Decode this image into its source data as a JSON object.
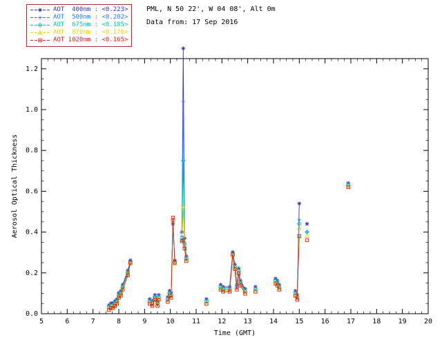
{
  "header": {
    "site_line": "PML, N 50 22', W 04 08', Alt 0m",
    "date_line": "Data from: 17 Sep 2016"
  },
  "legend": {
    "items": [
      {
        "label": "AOT  400nm : <0.223>"
      },
      {
        "label": "AOT  500nm : <0.202>"
      },
      {
        "label": "AOT  675nm : <0.185>"
      },
      {
        "label": "AOT  870nm : <0.176>"
      },
      {
        "label": "AOT 1020nm : <0.165>"
      }
    ]
  },
  "chart_data": {
    "type": "scatter",
    "title": "",
    "xlabel": "Time (GMT)",
    "ylabel": "Aerosol Optical Thickness",
    "xlim": [
      5,
      20
    ],
    "ylim": [
      0,
      1.25
    ],
    "xticks": [
      5,
      6,
      7,
      8,
      9,
      10,
      11,
      12,
      13,
      14,
      15,
      16,
      17,
      18,
      19,
      20
    ],
    "yticks": [
      0.0,
      0.2,
      0.4,
      0.6,
      0.8,
      1.0,
      1.2
    ],
    "grid": false,
    "legend_position": "top-left",
    "x": [
      7.62,
      7.7,
      7.78,
      7.85,
      7.93,
      8.0,
      8.08,
      8.15,
      8.35,
      8.45,
      9.2,
      9.3,
      9.4,
      9.5,
      9.55,
      9.9,
      9.97,
      10.03,
      10.1,
      10.17,
      10.45,
      10.5,
      10.55,
      10.62,
      11.4,
      11.95,
      12.05,
      12.3,
      12.42,
      12.5,
      12.58,
      12.65,
      12.72,
      12.9,
      13.3,
      14.08,
      14.15,
      14.22,
      14.85,
      14.92,
      15.0,
      15.3,
      16.9
    ],
    "series": [
      {
        "name": "AOT 400nm",
        "mean": 0.223,
        "color": "#3333bb",
        "marker": "star",
        "values": [
          0.042,
          0.052,
          0.052,
          0.062,
          0.072,
          0.102,
          0.112,
          0.142,
          0.212,
          0.262,
          0.072,
          0.062,
          0.092,
          0.062,
          0.092,
          0.082,
          0.112,
          0.102,
          0.44,
          0.262,
          0.4,
          1.3,
          0.37,
          0.282,
          0.072,
          0.142,
          0.132,
          0.132,
          0.302,
          0.242,
          0.142,
          0.222,
          0.162,
          0.122,
          0.132,
          0.172,
          0.162,
          0.142,
          0.112,
          0.092,
          0.54,
          0.44,
          0.64
        ]
      },
      {
        "name": "AOT 500nm",
        "mean": 0.202,
        "color": "#2277ff",
        "marker": "plus",
        "values": [
          0.036,
          0.046,
          0.046,
          0.056,
          0.066,
          0.096,
          0.106,
          0.136,
          0.206,
          0.256,
          0.066,
          0.056,
          0.086,
          0.056,
          0.086,
          0.076,
          0.106,
          0.096,
          0.45,
          0.256,
          0.38,
          1.04,
          0.35,
          0.276,
          0.066,
          0.136,
          0.126,
          0.126,
          0.296,
          0.236,
          0.136,
          0.216,
          0.156,
          0.116,
          0.126,
          0.166,
          0.156,
          0.136,
          0.106,
          0.086,
          0.46,
          0.4,
          0.635
        ]
      },
      {
        "name": "AOT 675nm",
        "mean": 0.185,
        "color": "#00c9a0",
        "marker": "diamond",
        "values": [
          0.03,
          0.04,
          0.04,
          0.05,
          0.06,
          0.09,
          0.1,
          0.13,
          0.2,
          0.25,
          0.06,
          0.05,
          0.08,
          0.05,
          0.08,
          0.07,
          0.1,
          0.09,
          0.46,
          0.25,
          0.37,
          0.75,
          0.34,
          0.27,
          0.06,
          0.13,
          0.12,
          0.12,
          0.29,
          0.23,
          0.13,
          0.21,
          0.15,
          0.11,
          0.12,
          0.16,
          0.15,
          0.13,
          0.1,
          0.08,
          0.44,
          0.4,
          0.63
        ]
      },
      {
        "name": "AOT 870nm",
        "mean": 0.176,
        "color": "#e8d000",
        "marker": "triangle",
        "values": [
          0.024,
          0.034,
          0.034,
          0.044,
          0.054,
          0.084,
          0.094,
          0.124,
          0.194,
          0.244,
          0.054,
          0.044,
          0.074,
          0.044,
          0.074,
          0.064,
          0.094,
          0.084,
          0.46,
          0.244,
          0.36,
          0.52,
          0.33,
          0.264,
          0.054,
          0.124,
          0.114,
          0.114,
          0.284,
          0.224,
          0.124,
          0.204,
          0.144,
          0.104,
          0.114,
          0.154,
          0.144,
          0.124,
          0.094,
          0.074,
          0.42,
          0.38,
          0.625
        ]
      },
      {
        "name": "AOT 1020nm",
        "mean": 0.165,
        "color": "#cc2222",
        "marker": "square",
        "values": [
          0.018,
          0.028,
          0.028,
          0.038,
          0.048,
          0.078,
          0.088,
          0.118,
          0.188,
          0.25,
          0.048,
          0.038,
          0.068,
          0.038,
          0.068,
          0.058,
          0.088,
          0.078,
          0.47,
          0.25,
          0.355,
          0.36,
          0.32,
          0.258,
          0.048,
          0.118,
          0.108,
          0.108,
          0.29,
          0.218,
          0.118,
          0.198,
          0.138,
          0.098,
          0.108,
          0.148,
          0.138,
          0.118,
          0.088,
          0.068,
          0.38,
          0.36,
          0.62
        ]
      }
    ]
  }
}
